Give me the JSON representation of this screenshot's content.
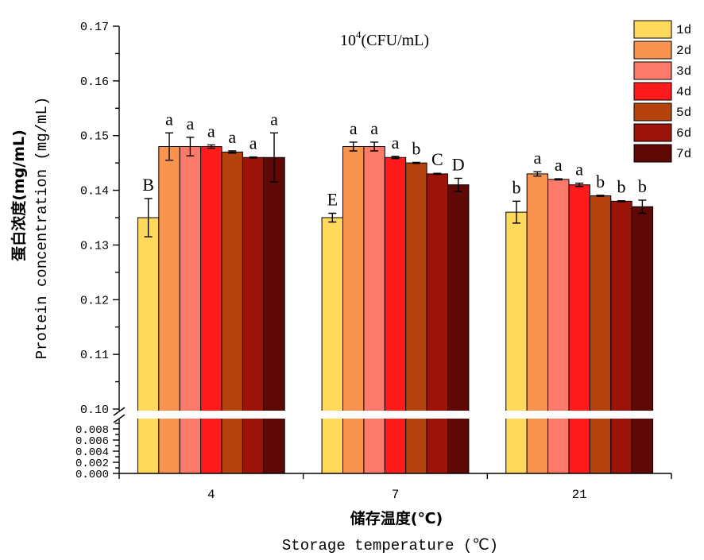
{
  "chart_data": {
    "type": "bar",
    "title": {
      "base": "10",
      "sup": "4",
      "unit": "(CFU/mL)"
    },
    "ylabel": {
      "cn": "蛋白浓度(mg/mL)",
      "en": "Protein concentration (mg/mL)"
    },
    "xlabel": {
      "cn": "储存温度(℃)",
      "en": "Storage temperature (℃)"
    },
    "categories": [
      "4",
      "7",
      "21"
    ],
    "y_axis_break": true,
    "ylim_upper": [
      0.1,
      0.17
    ],
    "ylim_lower": [
      0,
      0.01
    ],
    "yticks_upper": [
      "0.10",
      "0.11",
      "0.12",
      "0.13",
      "0.14",
      "0.15",
      "0.16",
      "0.17"
    ],
    "yticks_lower": [
      "0.000",
      "0.002",
      "0.004",
      "0.006",
      "0.008"
    ],
    "legend_position": "top-right",
    "grid": false,
    "series": [
      {
        "name": "1d",
        "color": "#FFD95B",
        "values": [
          0.135,
          0.135,
          0.136
        ],
        "errors": [
          0.0035,
          0.0008,
          0.002
        ],
        "letters": [
          "B",
          "E",
          "b"
        ]
      },
      {
        "name": "2d",
        "color": "#F99450",
        "values": [
          0.148,
          0.148,
          0.143
        ],
        "errors": [
          0.0025,
          0.0008,
          0.0004
        ],
        "letters": [
          "a",
          "a",
          "a"
        ]
      },
      {
        "name": "3d",
        "color": "#FC7A6A",
        "values": [
          0.148,
          0.148,
          0.142
        ],
        "errors": [
          0.0017,
          0.0008,
          0.0001
        ],
        "letters": [
          "a",
          "a",
          "a"
        ]
      },
      {
        "name": "4d",
        "color": "#FF1B1B",
        "values": [
          0.148,
          0.146,
          0.141
        ],
        "errors": [
          0.0003,
          0.0002,
          0.0003
        ],
        "letters": [
          "a",
          "a",
          "a"
        ]
      },
      {
        "name": "5d",
        "color": "#B4430E",
        "values": [
          0.147,
          0.145,
          0.139
        ],
        "errors": [
          0.0002,
          0.0001,
          0.0001
        ],
        "letters": [
          "a",
          "b",
          "b"
        ]
      },
      {
        "name": "6d",
        "color": "#9C1409",
        "values": [
          0.146,
          0.143,
          0.138
        ],
        "errors": [
          0.0001,
          0.0001,
          0.0001
        ],
        "letters": [
          "a",
          "C",
          "b"
        ]
      },
      {
        "name": "7d",
        "color": "#5E0905",
        "values": [
          0.146,
          0.141,
          0.137
        ],
        "errors": [
          0.0045,
          0.0012,
          0.0012
        ],
        "letters": [
          "a",
          "D",
          "b"
        ]
      }
    ]
  }
}
